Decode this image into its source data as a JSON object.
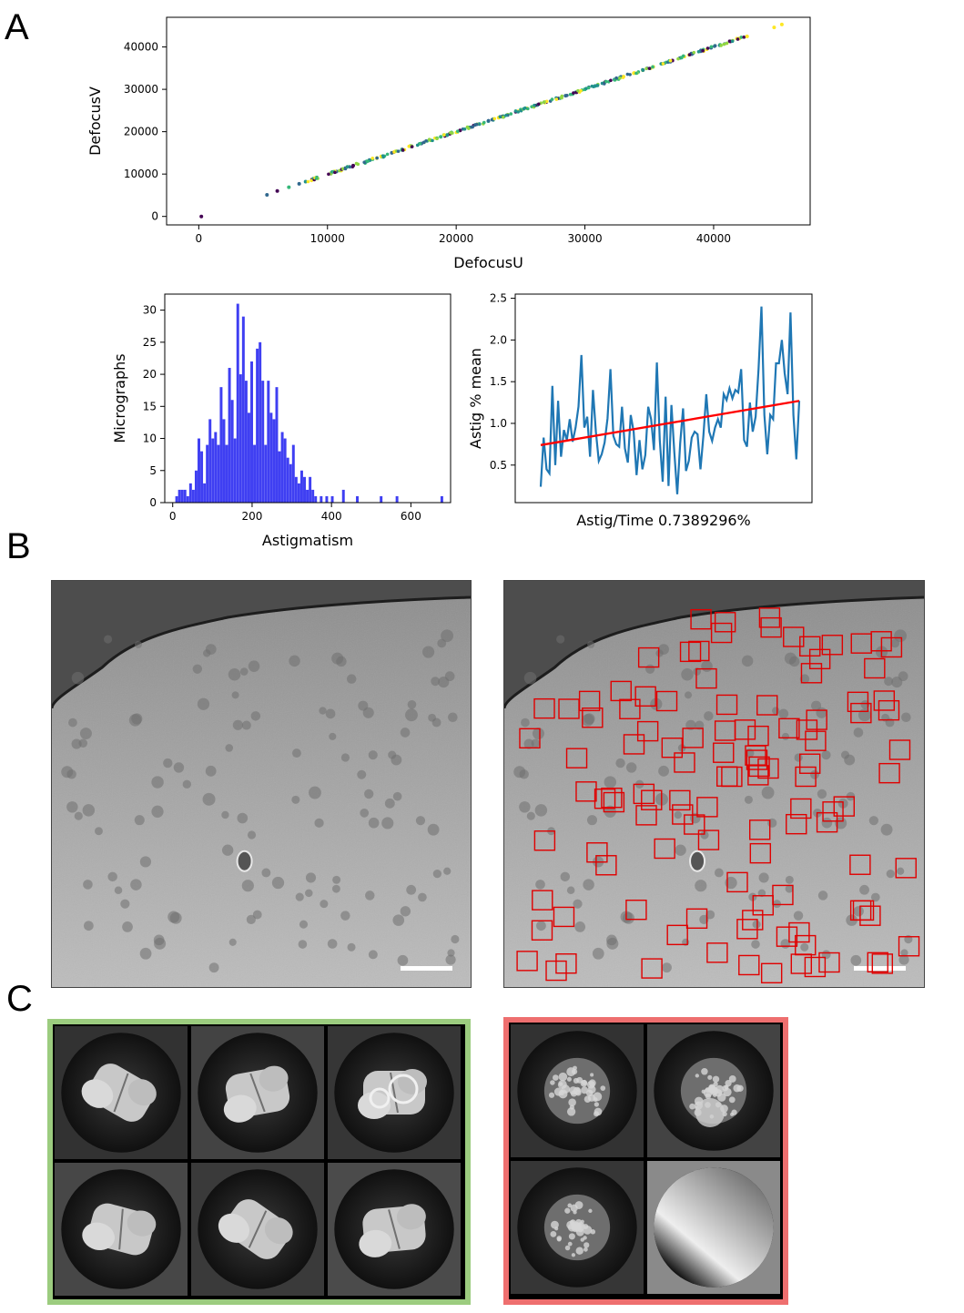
{
  "panels": {
    "a": "A",
    "b": "B",
    "c": "C"
  },
  "chart_data": [
    {
      "type": "scatter",
      "xlabel": "DefocusU",
      "ylabel": "DefocusV",
      "xlim": [
        -2500,
        47500
      ],
      "ylim": [
        -2000,
        47000
      ],
      "xticks": [
        0,
        10000,
        20000,
        30000,
        40000
      ],
      "yticks": [
        0,
        10000,
        20000,
        30000,
        40000
      ],
      "xtick_labels": [
        "0",
        "10000",
        "20000",
        "30000",
        "40000"
      ],
      "ytick_labels": [
        "0",
        "10000",
        "20000",
        "30000",
        "40000"
      ],
      "relation": "points lie along DefocusV ≈ DefocusU, spanning roughly 5000–45000, plus one outlier near (200, 0)",
      "points": [
        {
          "x": 200,
          "y": 0
        },
        {
          "x": 5300,
          "y": 5100
        },
        {
          "x": 6100,
          "y": 6000
        },
        {
          "x": 7000,
          "y": 6900
        },
        {
          "x": 7800,
          "y": 7700
        },
        {
          "x": 8300,
          "y": 8200
        },
        {
          "x": 8800,
          "y": 8700
        },
        {
          "x": 9000,
          "y": 8900
        },
        {
          "x": 10300,
          "y": 10300
        },
        {
          "x": 10700,
          "y": 10600
        },
        {
          "x": 11400,
          "y": 11400
        },
        {
          "x": 12000,
          "y": 12000
        },
        {
          "x": 13000,
          "y": 12900
        },
        {
          "x": 13500,
          "y": 13500
        },
        {
          "x": 14200,
          "y": 14100
        },
        {
          "x": 15000,
          "y": 15000
        },
        {
          "x": 15800,
          "y": 15800
        },
        {
          "x": 16500,
          "y": 16500
        },
        {
          "x": 17300,
          "y": 17200
        },
        {
          "x": 18000,
          "y": 18000
        },
        {
          "x": 18800,
          "y": 18800
        },
        {
          "x": 19500,
          "y": 19500
        },
        {
          "x": 20300,
          "y": 20300
        },
        {
          "x": 21000,
          "y": 21000
        },
        {
          "x": 21800,
          "y": 21800
        },
        {
          "x": 22500,
          "y": 22500
        },
        {
          "x": 23300,
          "y": 23300
        },
        {
          "x": 24000,
          "y": 24000
        },
        {
          "x": 24800,
          "y": 24800
        },
        {
          "x": 25500,
          "y": 25500
        },
        {
          "x": 26300,
          "y": 26300
        },
        {
          "x": 27000,
          "y": 27000
        },
        {
          "x": 27800,
          "y": 27800
        },
        {
          "x": 28500,
          "y": 28500
        },
        {
          "x": 29300,
          "y": 29300
        },
        {
          "x": 30000,
          "y": 30000
        },
        {
          "x": 30800,
          "y": 30800
        },
        {
          "x": 31500,
          "y": 31500
        },
        {
          "x": 32300,
          "y": 32300
        },
        {
          "x": 33000,
          "y": 33000
        },
        {
          "x": 33800,
          "y": 33800
        },
        {
          "x": 34500,
          "y": 34500
        },
        {
          "x": 35300,
          "y": 35300
        },
        {
          "x": 36000,
          "y": 36000
        },
        {
          "x": 36800,
          "y": 36800
        },
        {
          "x": 37500,
          "y": 37500
        },
        {
          "x": 38300,
          "y": 38300
        },
        {
          "x": 39000,
          "y": 39000
        },
        {
          "x": 39800,
          "y": 39800
        },
        {
          "x": 40500,
          "y": 40500
        },
        {
          "x": 41300,
          "y": 41300
        },
        {
          "x": 42000,
          "y": 42000
        },
        {
          "x": 42600,
          "y": 42500
        },
        {
          "x": 44700,
          "y": 44600
        },
        {
          "x": 45300,
          "y": 45300
        }
      ],
      "point_colors": [
        "#440154",
        "#31688e",
        "#21918c",
        "#35b779",
        "#90d743",
        "#fde725"
      ]
    },
    {
      "type": "bar",
      "subtype": "histogram",
      "xlabel": "Astigmatism",
      "ylabel": "Micrographs",
      "xlim": [
        -20,
        700
      ],
      "ylim": [
        0,
        32.5
      ],
      "xticks": [
        0,
        200,
        400,
        600
      ],
      "yticks": [
        0,
        5,
        10,
        15,
        20,
        25,
        30
      ],
      "xtick_labels": [
        "0",
        "200",
        "400",
        "600"
      ],
      "ytick_labels": [
        "0",
        "5",
        "10",
        "15",
        "20",
        "25",
        "30"
      ],
      "bar_color": "#3f3ff2",
      "bin_width": 6.8,
      "bins": [
        {
          "x": 10,
          "v": 1
        },
        {
          "x": 17,
          "v": 2
        },
        {
          "x": 24,
          "v": 2
        },
        {
          "x": 31,
          "v": 2
        },
        {
          "x": 38,
          "v": 1
        },
        {
          "x": 45,
          "v": 3
        },
        {
          "x": 52,
          "v": 2
        },
        {
          "x": 59,
          "v": 5
        },
        {
          "x": 66,
          "v": 10
        },
        {
          "x": 73,
          "v": 8
        },
        {
          "x": 80,
          "v": 3
        },
        {
          "x": 87,
          "v": 9
        },
        {
          "x": 94,
          "v": 13
        },
        {
          "x": 101,
          "v": 10
        },
        {
          "x": 108,
          "v": 11
        },
        {
          "x": 115,
          "v": 9
        },
        {
          "x": 122,
          "v": 18
        },
        {
          "x": 129,
          "v": 13
        },
        {
          "x": 136,
          "v": 9
        },
        {
          "x": 143,
          "v": 21
        },
        {
          "x": 150,
          "v": 16
        },
        {
          "x": 157,
          "v": 10
        },
        {
          "x": 164,
          "v": 31
        },
        {
          "x": 171,
          "v": 20
        },
        {
          "x": 178,
          "v": 29
        },
        {
          "x": 185,
          "v": 19
        },
        {
          "x": 192,
          "v": 14
        },
        {
          "x": 199,
          "v": 22
        },
        {
          "x": 206,
          "v": 9
        },
        {
          "x": 213,
          "v": 24
        },
        {
          "x": 220,
          "v": 25
        },
        {
          "x": 227,
          "v": 19
        },
        {
          "x": 234,
          "v": 9
        },
        {
          "x": 241,
          "v": 19
        },
        {
          "x": 248,
          "v": 14
        },
        {
          "x": 255,
          "v": 13
        },
        {
          "x": 262,
          "v": 18
        },
        {
          "x": 269,
          "v": 8
        },
        {
          "x": 276,
          "v": 11
        },
        {
          "x": 283,
          "v": 10
        },
        {
          "x": 290,
          "v": 7
        },
        {
          "x": 297,
          "v": 6
        },
        {
          "x": 304,
          "v": 9
        },
        {
          "x": 311,
          "v": 4
        },
        {
          "x": 318,
          "v": 3
        },
        {
          "x": 325,
          "v": 5
        },
        {
          "x": 332,
          "v": 4
        },
        {
          "x": 339,
          "v": 2
        },
        {
          "x": 346,
          "v": 4
        },
        {
          "x": 353,
          "v": 2
        },
        {
          "x": 360,
          "v": 1
        },
        {
          "x": 374,
          "v": 1
        },
        {
          "x": 388,
          "v": 1
        },
        {
          "x": 402,
          "v": 1
        },
        {
          "x": 430,
          "v": 2
        },
        {
          "x": 465,
          "v": 1
        },
        {
          "x": 525,
          "v": 1
        },
        {
          "x": 565,
          "v": 1
        },
        {
          "x": 678,
          "v": 1
        }
      ]
    },
    {
      "type": "line",
      "xlabel": "Astig/Time 0.7389296%",
      "ylabel": "Astig % mean",
      "ylim": [
        0.05,
        2.55
      ],
      "yticks": [
        0.5,
        1.0,
        1.5,
        2.0,
        2.5
      ],
      "ytick_labels": [
        "0.5",
        "1.0",
        "1.5",
        "2.0",
        "2.5"
      ],
      "series": [
        {
          "color": "#1f77b4",
          "values": [
            0.24,
            0.83,
            0.45,
            0.4,
            1.45,
            0.5,
            1.27,
            0.6,
            0.92,
            0.8,
            1.05,
            0.78,
            0.95,
            1.2,
            1.82,
            0.95,
            1.08,
            0.6,
            1.4,
            0.9,
            0.55,
            0.63,
            0.77,
            1.06,
            1.65,
            0.85,
            0.75,
            0.72,
            1.2,
            0.7,
            0.53,
            1.1,
            0.9,
            0.38,
            0.8,
            0.45,
            0.62,
            1.2,
            1.05,
            0.68,
            1.73,
            0.8,
            0.3,
            1.32,
            0.25,
            1.22,
            0.65,
            0.15,
            0.76,
            1.18,
            0.43,
            0.55,
            0.83,
            0.9,
            0.87,
            0.45,
            0.85,
            1.35,
            0.9,
            0.79,
            0.95,
            1.05,
            0.95,
            1.35,
            1.28,
            1.42,
            1.3,
            1.4,
            1.37,
            1.65,
            0.8,
            0.72,
            1.25,
            0.9,
            1.08,
            1.65,
            2.4,
            1.1,
            0.63,
            1.1,
            1.05,
            1.72,
            1.72,
            2.0,
            1.6,
            1.35,
            2.33,
            1.1,
            0.57,
            1.27
          ]
        },
        {
          "color": "#ff0000",
          "values": [
            0.74,
            1.27
          ],
          "kind": "trend"
        }
      ]
    }
  ],
  "micrographs": [
    {
      "scale_bar_color": "#ffffff"
    },
    {
      "scale_bar_color": "#ffffff",
      "box_color": "#e00000"
    }
  ],
  "galleries": [
    {
      "border_color": "#9ccc7f"
    },
    {
      "border_color": "#ee6f6f"
    }
  ]
}
